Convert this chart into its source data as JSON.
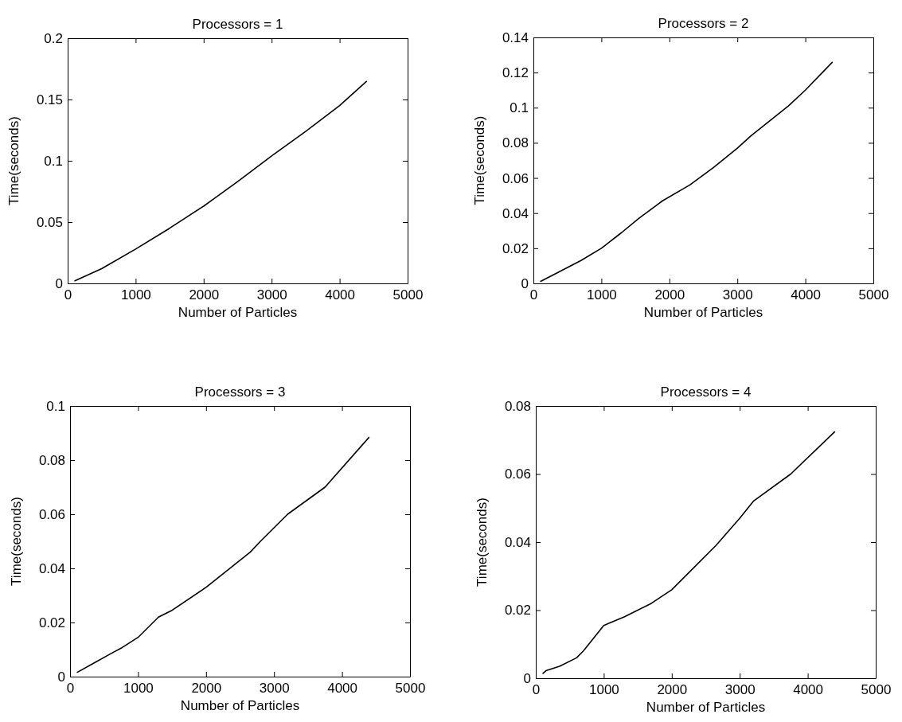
{
  "chart_data": [
    {
      "type": "line",
      "title": "Processors = 1",
      "xlabel": "Number of Particles",
      "ylabel": "Time(seconds)",
      "xlim": [
        0,
        5000
      ],
      "xticks": [
        0,
        1000,
        2000,
        3000,
        4000,
        5000
      ],
      "ylim": [
        0,
        0.2
      ],
      "yticks": [
        0,
        0.05,
        0.1,
        0.15,
        0.2
      ],
      "grid": false,
      "series": [
        {
          "color": "#000000",
          "x": [
            100,
            500,
            1000,
            1500,
            2000,
            2500,
            3000,
            3500,
            4000,
            4400
          ],
          "values": [
            0.002,
            0.012,
            0.028,
            0.045,
            0.063,
            0.083,
            0.104,
            0.124,
            0.145,
            0.165
          ]
        }
      ]
    },
    {
      "type": "line",
      "title": "Processors = 2",
      "xlabel": "Number of Particles",
      "ylabel": "Time(seconds)",
      "xlim": [
        0,
        5000
      ],
      "xticks": [
        0,
        1000,
        2000,
        3000,
        4000,
        5000
      ],
      "ylim": [
        0,
        0.14
      ],
      "yticks": [
        0,
        0.02,
        0.04,
        0.06,
        0.08,
        0.1,
        0.12,
        0.14
      ],
      "grid": false,
      "series": [
        {
          "color": "#000000",
          "x": [
            100,
            350,
            700,
            1000,
            1300,
            1550,
            1900,
            2300,
            2650,
            3000,
            3200,
            3750,
            4000,
            4400
          ],
          "values": [
            0.001,
            0.006,
            0.013,
            0.02,
            0.029,
            0.037,
            0.047,
            0.056,
            0.066,
            0.077,
            0.084,
            0.101,
            0.11,
            0.126
          ]
        }
      ]
    },
    {
      "type": "line",
      "title": "Processors = 3",
      "xlabel": "Number of Particles",
      "ylabel": "Time(seconds)",
      "xlim": [
        0,
        5000
      ],
      "xticks": [
        0,
        1000,
        2000,
        3000,
        4000,
        5000
      ],
      "ylim": [
        0,
        0.1
      ],
      "yticks": [
        0,
        0.02,
        0.04,
        0.06,
        0.08,
        0.1
      ],
      "grid": false,
      "series": [
        {
          "color": "#000000",
          "x": [
            100,
            350,
            600,
            750,
            1000,
            1300,
            1500,
            2000,
            2400,
            2650,
            2800,
            3200,
            3750,
            4400
          ],
          "values": [
            0.0015,
            0.005,
            0.0085,
            0.0105,
            0.0145,
            0.022,
            0.0245,
            0.033,
            0.041,
            0.046,
            0.05,
            0.06,
            0.07,
            0.0885
          ]
        }
      ]
    },
    {
      "type": "line",
      "title": "Processors = 4",
      "xlabel": "Number of Particles",
      "ylabel": "Time(seconds)",
      "xlim": [
        0,
        5000
      ],
      "xticks": [
        0,
        1000,
        2000,
        3000,
        4000,
        5000
      ],
      "ylim": [
        0,
        0.08
      ],
      "yticks": [
        0,
        0.02,
        0.04,
        0.06,
        0.08
      ],
      "grid": false,
      "series": [
        {
          "color": "#000000",
          "x": [
            100,
            150,
            350,
            600,
            700,
            1000,
            1300,
            1700,
            2000,
            2400,
            2650,
            3000,
            3200,
            3750,
            4400
          ],
          "values": [
            0.0013,
            0.0022,
            0.0035,
            0.006,
            0.008,
            0.0155,
            0.018,
            0.022,
            0.026,
            0.034,
            0.039,
            0.047,
            0.052,
            0.06,
            0.0725
          ]
        }
      ]
    }
  ]
}
